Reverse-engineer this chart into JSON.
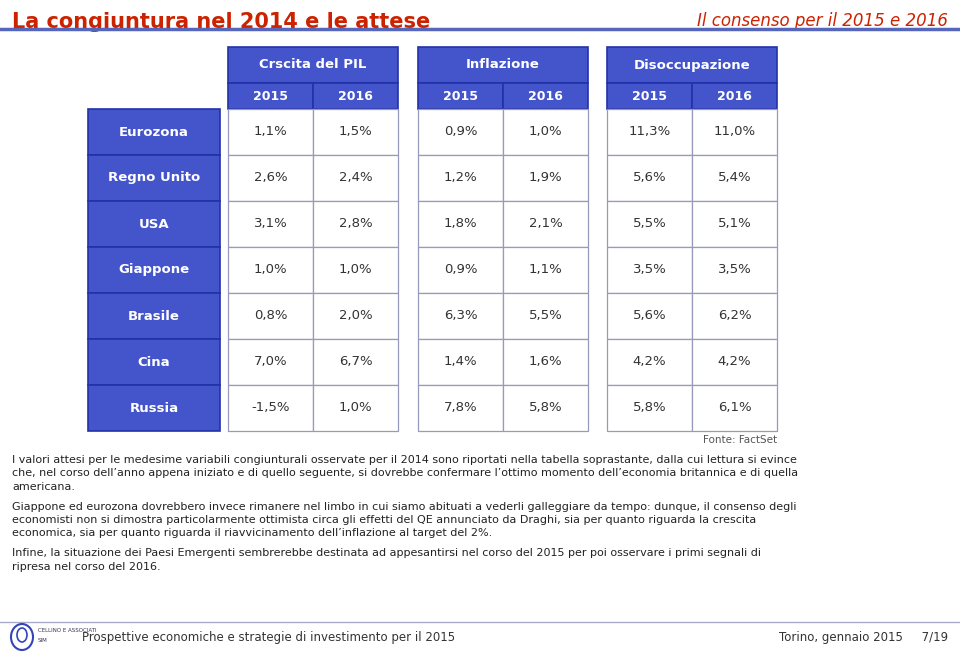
{
  "title_left": "La congiuntura nel 2014 e le attese",
  "title_right": "Il consenso per il 2015 e 2016",
  "col_groups": [
    "Crscita del PIL",
    "Inflazione",
    "Disoccupazione"
  ],
  "col_years": [
    "2015",
    "2016",
    "2015",
    "2016",
    "2015",
    "2016"
  ],
  "rows": [
    {
      "label": "Eurozona",
      "values": [
        "1,1%",
        "1,5%",
        "0,9%",
        "1,0%",
        "11,3%",
        "11,0%"
      ]
    },
    {
      "label": "Regno Unito",
      "values": [
        "2,6%",
        "2,4%",
        "1,2%",
        "1,9%",
        "5,6%",
        "5,4%"
      ]
    },
    {
      "label": "USA",
      "values": [
        "3,1%",
        "2,8%",
        "1,8%",
        "2,1%",
        "5,5%",
        "5,1%"
      ]
    },
    {
      "label": "Giappone",
      "values": [
        "1,0%",
        "1,0%",
        "0,9%",
        "1,1%",
        "3,5%",
        "3,5%"
      ]
    },
    {
      "label": "Brasile",
      "values": [
        "0,8%",
        "2,0%",
        "6,3%",
        "5,5%",
        "5,6%",
        "6,2%"
      ]
    },
    {
      "label": "Cina",
      "values": [
        "7,0%",
        "6,7%",
        "1,4%",
        "1,6%",
        "4,2%",
        "4,2%"
      ]
    },
    {
      "label": "Russia",
      "values": [
        "-1,5%",
        "1,0%",
        "7,8%",
        "5,8%",
        "5,8%",
        "6,1%"
      ]
    }
  ],
  "fonte": "Fonte: FactSet",
  "blue": "#4455cc",
  "blue_dark": "#2233aa",
  "white": "#ffffff",
  "cell_border": "#aaaacc",
  "cell_text": "#333333",
  "title_left_color": "#cc2200",
  "title_right_color": "#cc2200",
  "line_color": "#5566bb",
  "body_paragraphs": [
    "I valori attesi per le medesime variabili congiunturali osservate per il 2014 sono riportati nella tabella soprastante, dalla cui lettura si evince\nche, nel corso dell’anno appena iniziato e di quello seguente, si dovrebbe confermare l’ottimo momento dell’economia britannica e di quella\namericana.",
    "Giappone ed eurozona dovrebbero invece rimanere nel limbo in cui siamo abituati a vederli galleggiare da tempo: dunque, il consenso degli\neconomisti non si dimostra particolarmente ottimista circa gli effetti del QE annunciato da Draghi, sia per quanto riguarda la crescita\neconomica, sia per quanto riguarda il riavvicinamento dell’inflazione al target del 2%.",
    "Infine, la situazione dei Paesi Emergenti sembrerebbe destinata ad appesantirsi nel corso del 2015 per poi osservare i primi segnali di\nripresa nel corso del 2016."
  ],
  "footer_center": "Prospettive economiche e strategie di investimento per il 2015",
  "footer_right": "Torino, gennaio 2015     7/19"
}
